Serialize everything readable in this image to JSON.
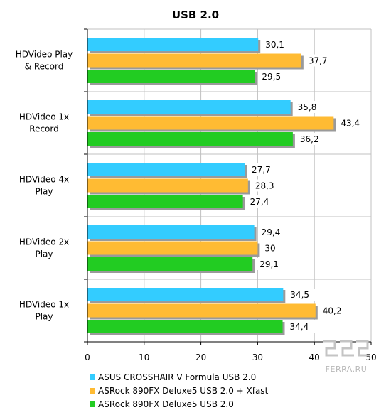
{
  "chart_data": {
    "type": "bar",
    "orientation": "horizontal",
    "title": "USB 2.0",
    "categories": [
      "HDVideo Play\n& Record",
      "HDVideo 1x\nRecord",
      "HDVideo 4x\nPlay",
      "HDVideo 2x\nPlay",
      "HDVideo 1x\nPlay"
    ],
    "series": [
      {
        "name": "ASUS CROSSHAIR  V Formula USB 2.0",
        "color": "#33ccff",
        "values": [
          30.1,
          35.8,
          27.7,
          29.4,
          34.5
        ],
        "labels": [
          "30,1",
          "35,8",
          "27,7",
          "29,4",
          "34,5"
        ]
      },
      {
        "name": "ASRock 890FX Deluxe5 USB 2.0 + Xfast",
        "color": "#ffbb33",
        "values": [
          37.7,
          43.4,
          28.3,
          30,
          40.2
        ],
        "labels": [
          "37,7",
          "43,4",
          "28,3",
          "30",
          "40,2"
        ]
      },
      {
        "name": "ASRock 890FX Deluxe5 USB 2.0",
        "color": "#22cc22",
        "values": [
          29.5,
          36.2,
          27.4,
          29.1,
          34.4
        ],
        "labels": [
          "29,5",
          "36,2",
          "27,4",
          "29,1",
          "34,4"
        ]
      }
    ],
    "xlim": [
      0,
      50
    ],
    "xticks": [
      0,
      10,
      20,
      30,
      40,
      50
    ],
    "grid": true,
    "legend_position": "bottom"
  },
  "watermark": {
    "text": "FERRA.RU",
    "icon": "ferra-logo-icon"
  }
}
